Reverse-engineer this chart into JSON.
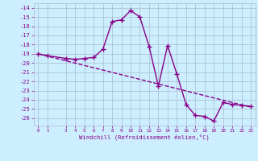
{
  "x": [
    0,
    1,
    3,
    4,
    5,
    6,
    7,
    8,
    9,
    10,
    11,
    12,
    13,
    14,
    15,
    16,
    17,
    18,
    19,
    20,
    21,
    22,
    23
  ],
  "y": [
    -19,
    -19.2,
    -19.5,
    -19.6,
    -19.5,
    -19.4,
    -18.5,
    -15.5,
    -15.3,
    -14.3,
    -15.0,
    -18.2,
    -22.5,
    -18.1,
    -21.2,
    -24.5,
    -25.7,
    -25.8,
    -26.3,
    -24.3,
    -24.5,
    -24.6,
    -24.7
  ],
  "trend_x": [
    0,
    23
  ],
  "trend_y": [
    -19.0,
    -24.8
  ],
  "line_color": "#880088",
  "bg_color": "#cceeff",
  "grid_color": "#aabbcc",
  "xlabel": "Windchill (Refroidissement éolien,°C)",
  "ylim": [
    -26.8,
    -13.5
  ],
  "xlim": [
    -0.5,
    23.5
  ],
  "xticks": [
    0,
    1,
    3,
    4,
    5,
    6,
    7,
    8,
    9,
    10,
    11,
    12,
    13,
    14,
    15,
    16,
    17,
    18,
    19,
    20,
    21,
    22,
    23
  ],
  "yticks": [
    -14,
    -15,
    -16,
    -17,
    -18,
    -19,
    -20,
    -21,
    -22,
    -23,
    -24,
    -25,
    -26
  ],
  "marker": "+",
  "markersize": 4,
  "linewidth": 1.0
}
